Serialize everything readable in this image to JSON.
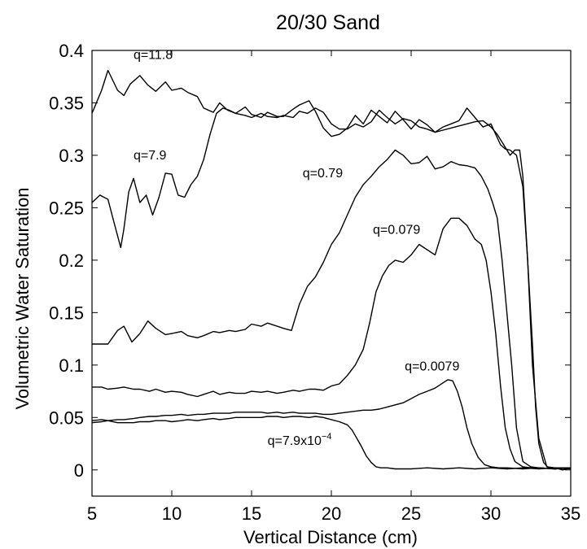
{
  "chart_data": {
    "type": "line",
    "title": "20/30 Sand",
    "xlabel": "Vertical Distance (cm)",
    "ylabel": "Volumetric Water Saturation",
    "xlim": [
      5,
      35
    ],
    "ylim": [
      -0.025,
      0.4
    ],
    "xticks": [
      "5",
      "10",
      "15",
      "20",
      "25",
      "30",
      "35"
    ],
    "yticks": [
      "0",
      "0.05",
      "0.1",
      "0.15",
      "0.2",
      "0.25",
      "0.3",
      "0.35",
      "0.4"
    ],
    "grid": false,
    "legend": "none",
    "line_color": "#000000",
    "series": [
      {
        "name": "q=11.8",
        "x": [
          5.0,
          5.6,
          6.0,
          6.6,
          7.0,
          7.4,
          8.0,
          8.5,
          9.0,
          9.6,
          10.0,
          10.6,
          11.0,
          11.6,
          12.0,
          12.6,
          13.0,
          13.5,
          14.0,
          14.6,
          15.0,
          15.6,
          16.0,
          16.6,
          17.0,
          17.6,
          18.0,
          18.6,
          19.0,
          19.5,
          20.0,
          20.5,
          21.0,
          21.5,
          22.0,
          22.5,
          23.0,
          23.5,
          24.0,
          24.5,
          25.0,
          25.5,
          26.0,
          26.5,
          27.0,
          27.5,
          28.0,
          28.5,
          29.0,
          29.5,
          30.0,
          30.3,
          30.6,
          30.9,
          31.2,
          31.6,
          32.0,
          32.3,
          32.6,
          32.8,
          33.0,
          33.3,
          33.6,
          34.0,
          34.5,
          35.0
        ],
        "y": [
          0.34,
          0.362,
          0.381,
          0.362,
          0.357,
          0.368,
          0.376,
          0.367,
          0.361,
          0.37,
          0.362,
          0.364,
          0.36,
          0.356,
          0.345,
          0.341,
          0.35,
          0.343,
          0.34,
          0.346,
          0.339,
          0.336,
          0.341,
          0.337,
          0.337,
          0.344,
          0.348,
          0.352,
          0.342,
          0.326,
          0.318,
          0.32,
          0.326,
          0.338,
          0.33,
          0.343,
          0.337,
          0.331,
          0.342,
          0.334,
          0.325,
          0.334,
          0.329,
          0.322,
          0.327,
          0.33,
          0.333,
          0.345,
          0.336,
          0.327,
          0.33,
          0.32,
          0.31,
          0.306,
          0.305,
          0.3,
          0.27,
          0.2,
          0.12,
          0.06,
          0.025,
          0.007,
          0.002,
          0.002,
          0.0,
          0.002
        ]
      },
      {
        "name": "q=7.9",
        "x": [
          5.0,
          5.5,
          6.0,
          6.4,
          6.8,
          7.0,
          7.3,
          7.6,
          8.0,
          8.4,
          8.8,
          9.2,
          9.6,
          10.0,
          10.4,
          10.8,
          11.2,
          11.6,
          12.0,
          12.4,
          12.8,
          13.2,
          13.6,
          14.0,
          14.6,
          15.0,
          15.6,
          16.0,
          16.6,
          17.0,
          17.6,
          18.0,
          18.5,
          19.0,
          19.5,
          20.0,
          20.5,
          21.0,
          21.5,
          22.0,
          22.5,
          23.0,
          23.5,
          24.0,
          24.5,
          25.0,
          25.5,
          26.0,
          26.5,
          27.0,
          27.5,
          28.0,
          28.5,
          29.0,
          29.5,
          30.0,
          30.4,
          30.8,
          31.2,
          31.5,
          31.8,
          32.0,
          32.3,
          32.6,
          33.0,
          33.5,
          34.0,
          34.5,
          35.0
        ],
        "y": [
          0.255,
          0.262,
          0.258,
          0.235,
          0.212,
          0.23,
          0.265,
          0.278,
          0.255,
          0.262,
          0.243,
          0.26,
          0.283,
          0.282,
          0.262,
          0.26,
          0.272,
          0.28,
          0.296,
          0.32,
          0.34,
          0.345,
          0.343,
          0.34,
          0.338,
          0.336,
          0.34,
          0.337,
          0.336,
          0.338,
          0.336,
          0.342,
          0.34,
          0.345,
          0.341,
          0.33,
          0.325,
          0.325,
          0.33,
          0.327,
          0.332,
          0.343,
          0.336,
          0.33,
          0.335,
          0.333,
          0.327,
          0.325,
          0.322,
          0.324,
          0.326,
          0.328,
          0.33,
          0.332,
          0.333,
          0.327,
          0.32,
          0.31,
          0.3,
          0.305,
          0.305,
          0.28,
          0.2,
          0.1,
          0.03,
          0.003,
          0.002,
          0.002,
          0.002
        ]
      },
      {
        "name": "q=0.79",
        "x": [
          5.0,
          5.6,
          6.0,
          6.6,
          7.0,
          7.5,
          8.0,
          8.5,
          9.0,
          9.6,
          10.0,
          10.6,
          11.0,
          11.6,
          12.0,
          12.6,
          13.0,
          13.6,
          14.0,
          14.6,
          15.0,
          15.6,
          16.0,
          16.6,
          17.0,
          17.5,
          18.0,
          18.5,
          19.0,
          19.5,
          20.0,
          20.5,
          21.0,
          21.5,
          22.0,
          22.5,
          23.0,
          23.5,
          24.0,
          24.5,
          25.0,
          25.5,
          26.0,
          26.5,
          27.0,
          27.5,
          28.0,
          28.5,
          29.0,
          29.4,
          29.8,
          30.1,
          30.4,
          30.7,
          31.0,
          31.3,
          31.6,
          32.0,
          32.5,
          33.0,
          34.0,
          35.0
        ],
        "y": [
          0.12,
          0.12,
          0.12,
          0.133,
          0.137,
          0.122,
          0.13,
          0.142,
          0.135,
          0.129,
          0.13,
          0.132,
          0.128,
          0.126,
          0.128,
          0.132,
          0.131,
          0.133,
          0.132,
          0.134,
          0.139,
          0.137,
          0.14,
          0.137,
          0.135,
          0.133,
          0.158,
          0.175,
          0.184,
          0.198,
          0.215,
          0.226,
          0.243,
          0.26,
          0.272,
          0.28,
          0.289,
          0.296,
          0.305,
          0.3,
          0.292,
          0.293,
          0.299,
          0.287,
          0.289,
          0.294,
          0.291,
          0.29,
          0.288,
          0.28,
          0.268,
          0.255,
          0.24,
          0.2,
          0.15,
          0.1,
          0.04,
          0.008,
          0.003,
          0.002,
          0.001,
          0.002
        ]
      },
      {
        "name": "q=0.079",
        "x": [
          5.0,
          5.6,
          6.0,
          6.6,
          7.0,
          7.6,
          8.0,
          8.6,
          9.0,
          9.6,
          10.0,
          10.6,
          11.0,
          11.6,
          12.0,
          12.6,
          13.0,
          13.6,
          14.0,
          14.6,
          15.0,
          15.6,
          16.0,
          16.6,
          17.0,
          17.6,
          18.0,
          18.6,
          19.0,
          19.5,
          20.0,
          20.5,
          21.0,
          21.5,
          22.0,
          22.4,
          22.8,
          23.2,
          23.6,
          24.0,
          24.5,
          25.0,
          25.5,
          26.0,
          26.5,
          27.0,
          27.5,
          28.0,
          28.5,
          29.0,
          29.4,
          29.7,
          30.0,
          30.3,
          30.6,
          30.9,
          31.2,
          31.5,
          32.0,
          32.5,
          33.0,
          34.0,
          35.0
        ],
        "y": [
          0.079,
          0.079,
          0.077,
          0.078,
          0.079,
          0.077,
          0.077,
          0.075,
          0.077,
          0.074,
          0.075,
          0.074,
          0.072,
          0.07,
          0.072,
          0.075,
          0.072,
          0.074,
          0.073,
          0.073,
          0.075,
          0.074,
          0.075,
          0.073,
          0.074,
          0.076,
          0.075,
          0.077,
          0.077,
          0.076,
          0.08,
          0.082,
          0.09,
          0.1,
          0.115,
          0.14,
          0.17,
          0.185,
          0.195,
          0.2,
          0.198,
          0.205,
          0.215,
          0.21,
          0.205,
          0.23,
          0.24,
          0.24,
          0.233,
          0.22,
          0.215,
          0.2,
          0.17,
          0.13,
          0.08,
          0.04,
          0.02,
          0.008,
          0.003,
          0.002,
          0.002,
          0.001,
          0.002
        ]
      },
      {
        "name": "q=0.0079",
        "x": [
          5.0,
          5.6,
          6.0,
          6.6,
          7.0,
          7.6,
          8.0,
          8.6,
          9.0,
          9.6,
          10.0,
          10.6,
          11.0,
          11.6,
          12.0,
          12.6,
          13.0,
          13.6,
          14.0,
          14.6,
          15.0,
          15.6,
          16.0,
          16.6,
          17.0,
          17.6,
          18.0,
          18.6,
          19.0,
          19.5,
          20.0,
          20.5,
          21.0,
          21.5,
          22.0,
          22.5,
          23.0,
          23.5,
          24.0,
          24.5,
          25.0,
          25.5,
          26.0,
          26.5,
          27.0,
          27.3,
          27.6,
          27.9,
          28.2,
          28.5,
          28.8,
          29.2,
          29.6,
          30.0,
          30.5,
          31.0,
          32.0,
          33.0,
          34.0,
          35.0
        ],
        "y": [
          0.045,
          0.046,
          0.047,
          0.048,
          0.048,
          0.049,
          0.05,
          0.051,
          0.051,
          0.052,
          0.052,
          0.053,
          0.052,
          0.053,
          0.053,
          0.054,
          0.054,
          0.054,
          0.055,
          0.055,
          0.055,
          0.055,
          0.054,
          0.055,
          0.054,
          0.055,
          0.054,
          0.054,
          0.054,
          0.053,
          0.053,
          0.054,
          0.055,
          0.056,
          0.057,
          0.057,
          0.058,
          0.06,
          0.062,
          0.064,
          0.068,
          0.072,
          0.075,
          0.078,
          0.083,
          0.086,
          0.085,
          0.075,
          0.06,
          0.04,
          0.025,
          0.012,
          0.005,
          0.003,
          0.002,
          0.002,
          0.001,
          0.002,
          0.001,
          0.002
        ]
      },
      {
        "name": "q=7.9x10^-4",
        "x": [
          5.0,
          5.6,
          6.0,
          6.6,
          7.0,
          7.6,
          8.0,
          8.6,
          9.0,
          9.6,
          10.0,
          10.6,
          11.0,
          11.6,
          12.0,
          12.6,
          13.0,
          13.6,
          14.0,
          14.6,
          15.0,
          15.6,
          16.0,
          16.6,
          17.0,
          17.6,
          18.0,
          18.6,
          19.0,
          19.5,
          20.0,
          20.5,
          21.0,
          21.3,
          21.6,
          21.9,
          22.2,
          22.5,
          22.8,
          23.1,
          23.5,
          24.0,
          25.0,
          26.0,
          27.0,
          28.0,
          29.0,
          30.0,
          31.0,
          32.0,
          33.0,
          34.0,
          35.0
        ],
        "y": [
          0.047,
          0.048,
          0.047,
          0.045,
          0.045,
          0.045,
          0.046,
          0.046,
          0.047,
          0.047,
          0.046,
          0.047,
          0.048,
          0.047,
          0.048,
          0.049,
          0.048,
          0.049,
          0.05,
          0.05,
          0.05,
          0.05,
          0.051,
          0.051,
          0.05,
          0.051,
          0.051,
          0.05,
          0.051,
          0.05,
          0.048,
          0.046,
          0.043,
          0.038,
          0.03,
          0.022,
          0.013,
          0.007,
          0.003,
          0.002,
          0.002,
          0.001,
          0.001,
          0.002,
          0.001,
          0.002,
          0.001,
          0.002,
          0.001,
          0.002,
          0.001,
          0.002,
          0.001
        ]
      }
    ],
    "annotations": [
      {
        "text": "q=11.8",
        "x": 7.6,
        "y": 0.392
      },
      {
        "text": "q=7.9",
        "x": 7.6,
        "y": 0.296
      },
      {
        "text": "q=0.79",
        "x": 18.2,
        "y": 0.279
      },
      {
        "text": "q=0.079",
        "x": 22.6,
        "y": 0.225
      },
      {
        "text": "q=0.0079",
        "x": 24.6,
        "y": 0.095
      },
      {
        "text": "q=7.9x10",
        "sup": "−4",
        "x": 16.0,
        "y": 0.024
      }
    ]
  }
}
